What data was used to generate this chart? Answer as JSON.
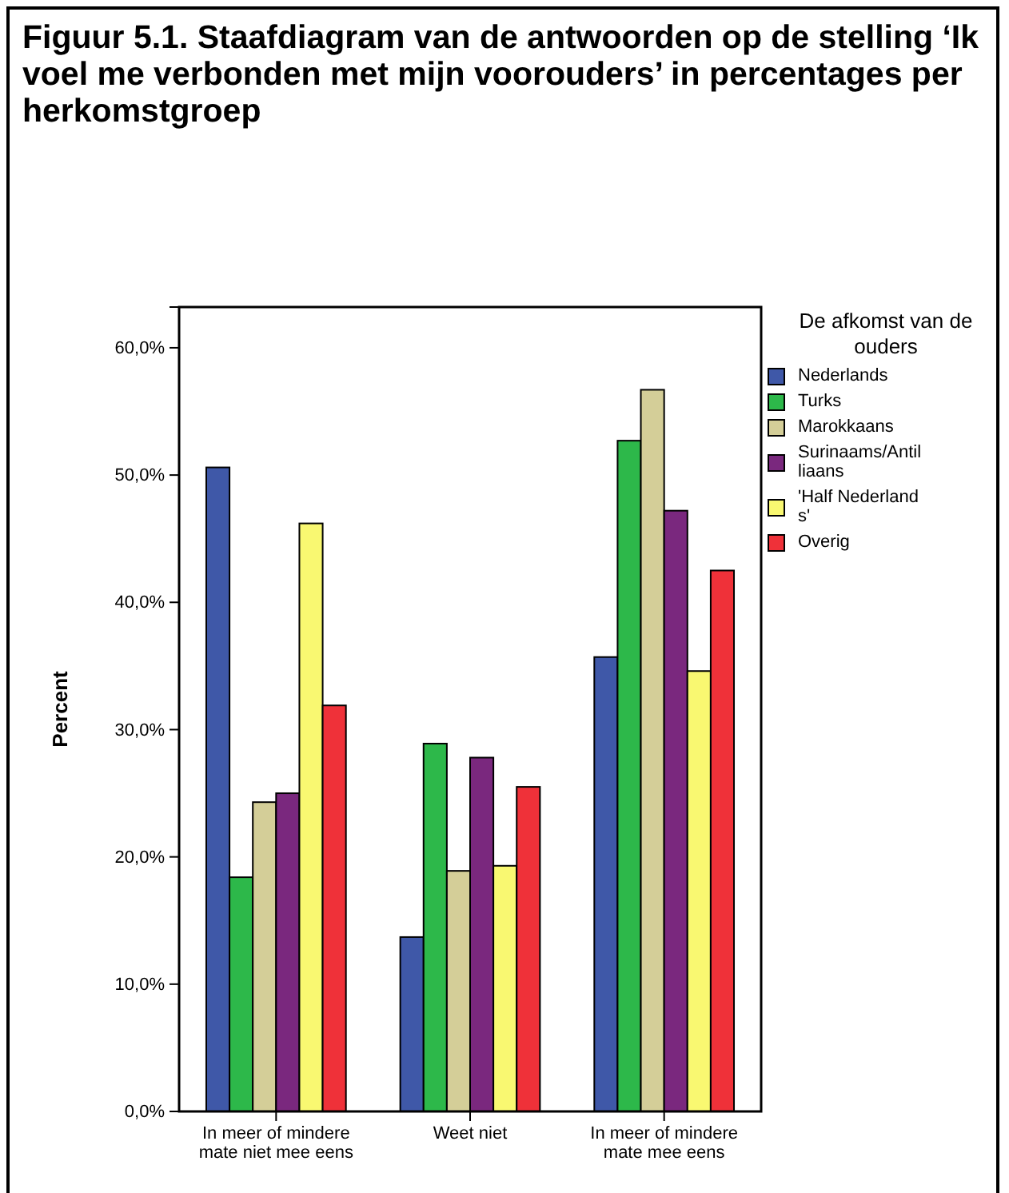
{
  "chart_data": {
    "type": "bar",
    "title": "Figuur 5.1. Staafdiagram van de antwoorden op de stelling ‘Ik voel me verbonden met mijn voorouders’ in percentages per herkomstgroep",
    "ylabel": "Percent",
    "legend_title": "De afkomst van de ouders",
    "categories": [
      "In meer of mindere mate niet mee eens",
      "Weet niet",
      "In meer of mindere mate mee eens"
    ],
    "series": [
      {
        "name": "Nederlands",
        "color": "#3f58a8",
        "values": [
          50.6,
          13.7,
          35.7
        ]
      },
      {
        "name": "Turks",
        "color": "#2db84a",
        "values": [
          18.4,
          28.9,
          52.7
        ]
      },
      {
        "name": "Marokkaans",
        "color": "#d4ce98",
        "values": [
          24.3,
          18.9,
          56.7
        ]
      },
      {
        "name": "Surinaams/Antilliaans",
        "color": "#7a287e",
        "values": [
          25.0,
          27.8,
          47.2
        ]
      },
      {
        "name": "'Half Nederlands'",
        "color": "#f9f871",
        "values": [
          46.2,
          19.3,
          34.6
        ]
      },
      {
        "name": "Overig",
        "color": "#ef3139",
        "values": [
          31.9,
          25.5,
          42.5
        ]
      }
    ],
    "ylim": [
      0,
      63.2
    ],
    "yticks": [
      {
        "value": 0,
        "label": "0,0%"
      },
      {
        "value": 10,
        "label": "10,0%"
      },
      {
        "value": 20,
        "label": "20,0%"
      },
      {
        "value": 30,
        "label": "30,0%"
      },
      {
        "value": 40,
        "label": "40,0%"
      },
      {
        "value": 50,
        "label": "50,0%"
      },
      {
        "value": 60,
        "label": "60,0%"
      }
    ],
    "grid": false,
    "legend": "right"
  }
}
